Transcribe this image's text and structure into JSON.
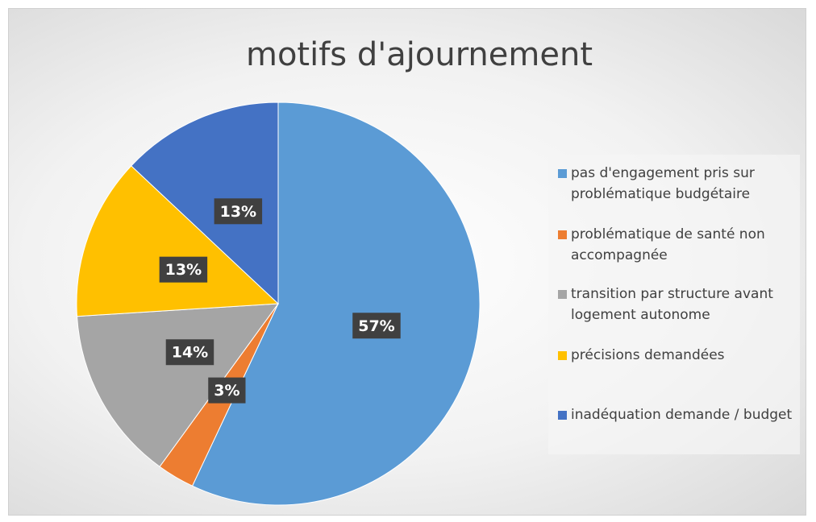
{
  "chart_data": {
    "type": "pie",
    "title": "motifs d'ajournement",
    "categories": [
      "pas d'engagement pris sur problématique budgétaire",
      "problématique de santé non accompagnée",
      "transition par structure avant logement autonome",
      "précisions demandées",
      "inadéquation demande / budget"
    ],
    "values": [
      57,
      3,
      14,
      13,
      13
    ],
    "value_labels": [
      "57%",
      "3%",
      "14%",
      "13%",
      "13%"
    ],
    "colors": [
      "#5b9bd5",
      "#ed7d31",
      "#a5a5a5",
      "#ffc000",
      "#4472c4"
    ],
    "legend": "right"
  }
}
